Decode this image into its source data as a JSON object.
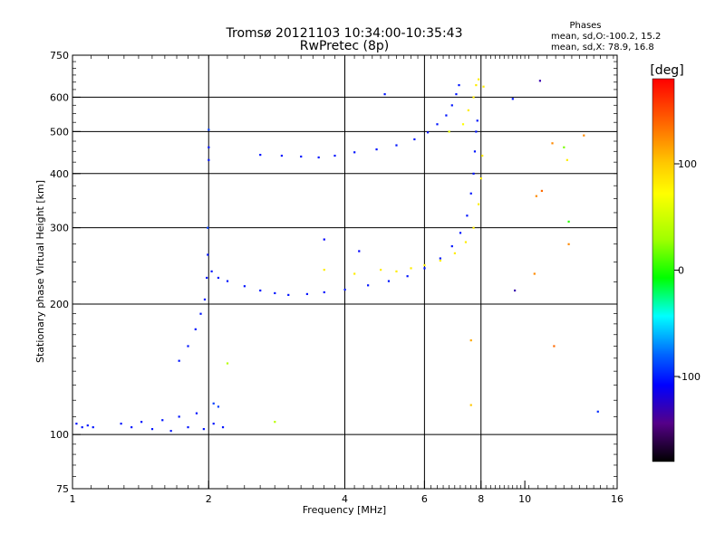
{
  "chart_data": {
    "type": "scatter",
    "title": "Tromsø 20121103 10:34:00-10:35:43",
    "subtitle": "RwPretec (8p)",
    "xlabel": "Frequency [MHz]",
    "ylabel": "Stationary phase Virtual Height [km]",
    "x_scale": "log",
    "y_scale": "log",
    "xlim": [
      1,
      16
    ],
    "ylim": [
      75,
      750
    ],
    "x_ticks": [
      {
        "value": 1,
        "label": "1"
      },
      {
        "value": 2,
        "label": "2"
      },
      {
        "value": 4,
        "label": "4"
      },
      {
        "value": 6,
        "label": "6"
      },
      {
        "value": 8,
        "label": "8"
      },
      {
        "value": 10,
        "label": "10"
      },
      {
        "value": 16,
        "label": "16"
      }
    ],
    "x_grid": [
      2,
      4,
      6,
      8
    ],
    "y_ticks": [
      {
        "value": 75,
        "label": "75"
      },
      {
        "value": 100,
        "label": "100"
      },
      {
        "value": 200,
        "label": "200"
      },
      {
        "value": 300,
        "label": "300"
      },
      {
        "value": 400,
        "label": "400"
      },
      {
        "value": 500,
        "label": "500"
      },
      {
        "value": 600,
        "label": "600"
      },
      {
        "value": 750,
        "label": "750"
      }
    ],
    "y_grid": [
      100,
      200,
      300,
      400,
      500,
      600
    ],
    "grid": true,
    "stats": {
      "header": "Phases",
      "line_o": "mean, sd,O:-100.2, 15.2",
      "line_x": "mean, sd,X:  78.9, 16.8"
    },
    "colorbar": {
      "label": "[deg]",
      "range": [
        -180,
        180
      ],
      "tick_labels": [
        "100",
        "0",
        "-100"
      ],
      "tick_values": [
        100,
        0,
        -100
      ]
    },
    "series": [
      {
        "points": [
          [
            1.02,
            106,
            -100
          ],
          [
            1.05,
            104,
            -100
          ],
          [
            1.08,
            105,
            -100
          ],
          [
            1.11,
            104,
            -100
          ],
          [
            1.28,
            106,
            -100
          ],
          [
            1.35,
            104,
            -100
          ],
          [
            1.42,
            107,
            -100
          ],
          [
            1.5,
            103,
            -100
          ],
          [
            1.58,
            108,
            -100
          ],
          [
            1.65,
            102,
            -100
          ],
          [
            1.72,
            110,
            -100
          ],
          [
            1.8,
            104,
            -100
          ],
          [
            1.88,
            112,
            -100
          ],
          [
            1.95,
            103,
            -100
          ],
          [
            2.05,
            106,
            -100
          ],
          [
            2.15,
            104,
            -100
          ],
          [
            2.05,
            118,
            -80
          ],
          [
            2.1,
            116,
            -80
          ],
          [
            1.72,
            148,
            -100
          ],
          [
            1.8,
            160,
            -100
          ],
          [
            1.87,
            175,
            -100
          ],
          [
            1.92,
            190,
            -100
          ],
          [
            1.96,
            205,
            -100
          ],
          [
            1.98,
            230,
            -100
          ],
          [
            1.99,
            260,
            -100
          ],
          [
            1.99,
            300,
            -80
          ],
          [
            2.0,
            430,
            -100
          ],
          [
            2.0,
            460,
            -100
          ],
          [
            2.0,
            505,
            -80
          ],
          [
            2.03,
            238,
            -100
          ],
          [
            2.1,
            230,
            -100
          ],
          [
            2.2,
            226,
            -100
          ],
          [
            2.4,
            220,
            -100
          ],
          [
            2.6,
            215,
            -100
          ],
          [
            2.8,
            212,
            -100
          ],
          [
            3.0,
            210,
            -100
          ],
          [
            3.3,
            211,
            -100
          ],
          [
            3.6,
            213,
            -100
          ],
          [
            4.0,
            216,
            -100
          ],
          [
            4.5,
            221,
            -100
          ],
          [
            5.0,
            226,
            -100
          ],
          [
            5.5,
            232,
            -100
          ],
          [
            6.0,
            242,
            -100
          ],
          [
            6.5,
            255,
            -100
          ],
          [
            6.9,
            272,
            -100
          ],
          [
            7.2,
            292,
            -100
          ],
          [
            7.45,
            320,
            -100
          ],
          [
            7.6,
            360,
            -100
          ],
          [
            7.7,
            400,
            -100
          ],
          [
            7.75,
            450,
            -100
          ],
          [
            7.8,
            500,
            -100
          ],
          [
            7.85,
            530,
            -100
          ],
          [
            2.6,
            442,
            -100
          ],
          [
            2.9,
            440,
            -100
          ],
          [
            3.2,
            438,
            -100
          ],
          [
            3.5,
            436,
            -100
          ],
          [
            3.8,
            440,
            -100
          ],
          [
            4.2,
            448,
            -100
          ],
          [
            4.7,
            455,
            -100
          ],
          [
            5.2,
            465,
            -100
          ],
          [
            5.7,
            480,
            -100
          ],
          [
            6.1,
            498,
            -100
          ],
          [
            6.4,
            520,
            -100
          ],
          [
            6.7,
            545,
            -100
          ],
          [
            6.9,
            575,
            -100
          ],
          [
            7.05,
            610,
            -100
          ],
          [
            7.15,
            640,
            -100
          ],
          [
            4.8,
            240,
            100
          ],
          [
            5.2,
            238,
            100
          ],
          [
            5.6,
            242,
            100
          ],
          [
            6.0,
            246,
            100
          ],
          [
            6.5,
            252,
            100
          ],
          [
            7.0,
            262,
            100
          ],
          [
            7.4,
            278,
            100
          ],
          [
            7.7,
            300,
            100
          ],
          [
            7.9,
            340,
            100
          ],
          [
            8.0,
            390,
            100
          ],
          [
            8.05,
            440,
            100
          ],
          [
            3.6,
            240,
            100
          ],
          [
            4.2,
            235,
            100
          ],
          [
            7.5,
            560,
            100
          ],
          [
            7.7,
            600,
            100
          ],
          [
            7.8,
            640,
            100
          ],
          [
            7.9,
            660,
            100
          ],
          [
            8.1,
            635,
            100
          ],
          [
            6.8,
            500,
            80
          ],
          [
            7.3,
            520,
            90
          ],
          [
            4.9,
            610,
            -100
          ],
          [
            9.4,
            595,
            -100
          ],
          [
            10.8,
            655,
            -130
          ],
          [
            11.5,
            470,
            140
          ],
          [
            12.2,
            460,
            40
          ],
          [
            12.4,
            430,
            100
          ],
          [
            10.6,
            355,
            140
          ],
          [
            10.9,
            365,
            150
          ],
          [
            12.5,
            310,
            20
          ],
          [
            12.5,
            275,
            140
          ],
          [
            10.5,
            235,
            140
          ],
          [
            9.5,
            215,
            -130
          ],
          [
            11.6,
            160,
            150
          ],
          [
            13.5,
            490,
            140
          ],
          [
            14.5,
            113,
            -90
          ],
          [
            7.6,
            165,
            130
          ],
          [
            7.6,
            117,
            120
          ],
          [
            2.2,
            146,
            60
          ],
          [
            2.8,
            107,
            60
          ],
          [
            3.6,
            282,
            -110
          ],
          [
            4.3,
            265,
            -110
          ]
        ]
      }
    ]
  }
}
